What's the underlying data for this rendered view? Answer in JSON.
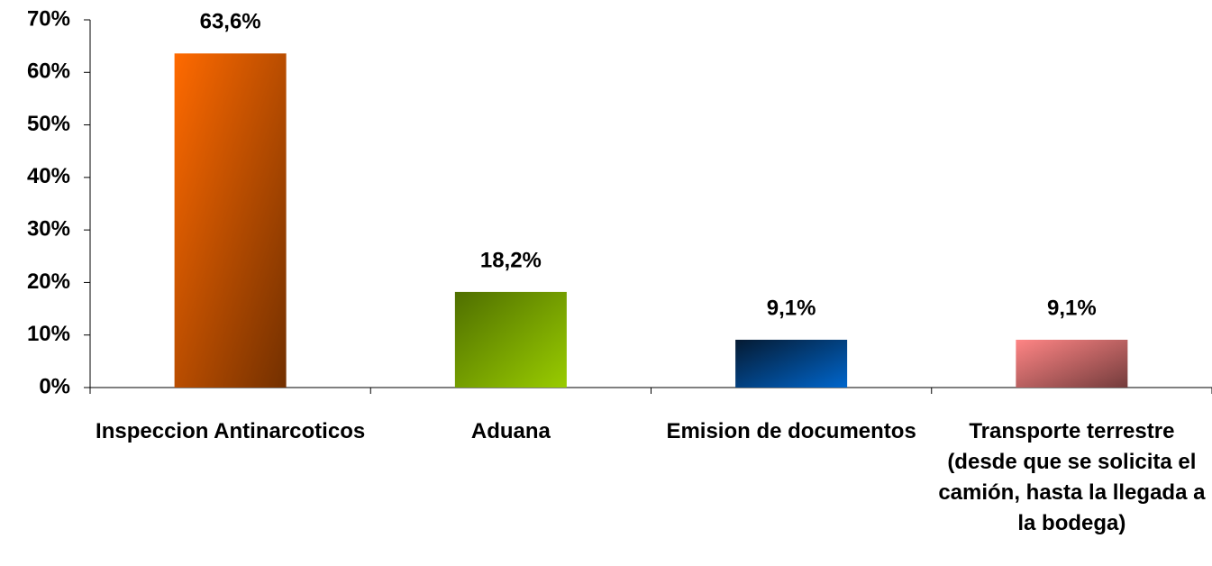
{
  "chart_data": {
    "type": "bar",
    "categories": [
      "Inspeccion Antinarcoticos",
      "Aduana",
      "Emision de documentos",
      "Transporte terrestre (desde que se solicita el camión, hasta la llegada a la bodega)"
    ],
    "values": [
      63.6,
      18.2,
      9.1,
      9.1
    ],
    "value_labels": [
      "63,6%",
      "18,2%",
      "9,1%",
      "9,1%"
    ],
    "colors": [
      "#ff6a00",
      "#4f6f00",
      "#0a3a70",
      "#ff8585"
    ],
    "ylim": [
      0,
      70
    ],
    "yticks": [
      {
        "value": 0,
        "label": "0%"
      },
      {
        "value": 10,
        "label": "10%"
      },
      {
        "value": 20,
        "label": "20%"
      },
      {
        "value": 30,
        "label": "30%"
      },
      {
        "value": 40,
        "label": "40%"
      },
      {
        "value": 50,
        "label": "50%"
      },
      {
        "value": 60,
        "label": "60%"
      },
      {
        "value": 70,
        "label": "70%"
      }
    ],
    "grid": false
  }
}
